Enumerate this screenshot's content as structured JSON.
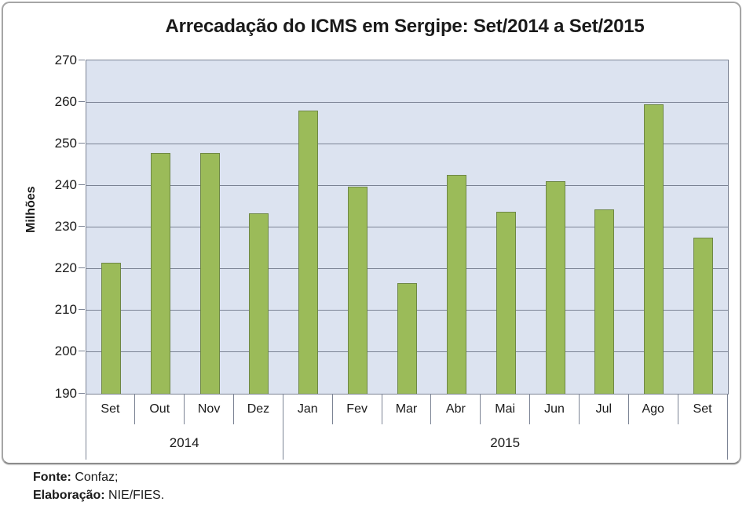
{
  "title": "Arrecadação do ICMS em Sergipe: Set/2014 a Set/2015",
  "footer": {
    "fonte_label": "Fonte:",
    "fonte_value": " Confaz;",
    "elaboracao_label": "Elaboração:",
    "elaboracao_value": " NIE/FIES."
  },
  "chart_data": {
    "type": "bar",
    "title": "Arrecadação do ICMS em Sergipe: Set/2014 a Set/2015",
    "xlabel": "",
    "ylabel": "Milhões",
    "ylim": [
      190,
      270
    ],
    "ytick_step": 10,
    "grid": true,
    "legend": "none",
    "categories": [
      "Set",
      "Out",
      "Nov",
      "Dez",
      "Jan",
      "Fev",
      "Mar",
      "Abr",
      "Mai",
      "Jun",
      "Jul",
      "Ago",
      "Set"
    ],
    "values": [
      221.5,
      247.7,
      247.7,
      233.3,
      257.9,
      239.7,
      216.6,
      242.5,
      233.7,
      241.0,
      234.2,
      259.4,
      227.4
    ],
    "year_groups": [
      {
        "label": "2014",
        "span": 4
      },
      {
        "label": "2015",
        "span": 9
      }
    ],
    "colors": {
      "bar_fill": "#9bbb59",
      "bar_border": "#6e8745",
      "plot_bg": "#dce3f0",
      "gridline": "#7b8394",
      "frame_border": "#a6a6a6",
      "text": "#1a1a1a"
    }
  }
}
